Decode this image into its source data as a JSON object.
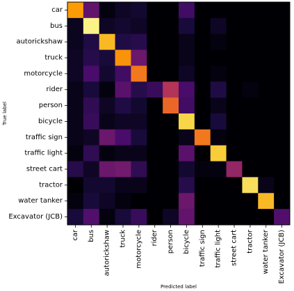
{
  "chart_data": {
    "type": "heatmap",
    "title": "",
    "xlabel": "Predicted label",
    "ylabel": "True label",
    "categories": [
      "car",
      "bus",
      "autorickshaw",
      "truck",
      "motorcycle",
      "rider",
      "person",
      "bicycle",
      "traffic sign",
      "traffic light",
      "street cart",
      "tractor",
      "water tanker",
      "Excavator (JCB)"
    ],
    "values_scale": [
      0,
      1
    ],
    "colormap": [
      "#000004",
      "#1b0c41",
      "#4a0c6b",
      "#781c6d",
      "#a52c60",
      "#cf4446",
      "#ed6925",
      "#fb9b06",
      "#f7d13d",
      "#fcffa4"
    ],
    "grid": false,
    "values": [
      [
        0.78,
        0.28,
        0.02,
        0.06,
        0.08,
        0.0,
        0.0,
        0.2,
        0.0,
        0.0,
        0.0,
        0.0,
        0.0,
        0.0
      ],
      [
        0.05,
        0.97,
        0.06,
        0.08,
        0.06,
        0.0,
        0.0,
        0.1,
        0.0,
        0.06,
        0.0,
        0.0,
        0.0,
        0.0
      ],
      [
        0.05,
        0.12,
        0.84,
        0.12,
        0.14,
        0.0,
        0.0,
        0.04,
        0.0,
        0.02,
        0.0,
        0.0,
        0.0,
        0.0
      ],
      [
        0.06,
        0.14,
        0.1,
        0.76,
        0.3,
        0.0,
        0.0,
        0.04,
        0.0,
        0.0,
        0.0,
        0.0,
        0.0,
        0.0
      ],
      [
        0.06,
        0.22,
        0.08,
        0.2,
        0.7,
        0.0,
        0.0,
        0.06,
        0.0,
        0.02,
        0.0,
        0.0,
        0.0,
        0.0
      ],
      [
        0.04,
        0.1,
        0.02,
        0.26,
        0.14,
        0.18,
        0.48,
        0.22,
        0.0,
        0.12,
        0.0,
        0.02,
        0.0,
        0.0
      ],
      [
        0.04,
        0.16,
        0.06,
        0.12,
        0.08,
        0.0,
        0.66,
        0.2,
        0.0,
        0.04,
        0.0,
        0.0,
        0.0,
        0.0
      ],
      [
        0.04,
        0.18,
        0.04,
        0.06,
        0.06,
        0.0,
        0.0,
        0.9,
        0.0,
        0.1,
        0.0,
        0.0,
        0.0,
        0.0
      ],
      [
        0.04,
        0.06,
        0.3,
        0.22,
        0.1,
        0.0,
        0.0,
        0.04,
        0.7,
        0.02,
        0.0,
        0.0,
        0.0,
        0.0
      ],
      [
        0.02,
        0.16,
        0.02,
        0.04,
        0.04,
        0.0,
        0.0,
        0.26,
        0.0,
        0.88,
        0.0,
        0.0,
        0.0,
        0.0
      ],
      [
        0.14,
        0.06,
        0.3,
        0.32,
        0.16,
        0.0,
        0.0,
        0.08,
        0.02,
        0.02,
        0.4,
        0.0,
        0.0,
        0.0
      ],
      [
        0.0,
        0.08,
        0.08,
        0.04,
        0.04,
        0.0,
        0.0,
        0.14,
        0.0,
        0.0,
        0.0,
        0.92,
        0.04,
        0.0
      ],
      [
        0.02,
        0.1,
        0.06,
        0.02,
        0.0,
        0.0,
        0.0,
        0.3,
        0.0,
        0.0,
        0.0,
        0.0,
        0.84,
        0.0
      ],
      [
        0.1,
        0.24,
        0.02,
        0.1,
        0.18,
        0.0,
        0.06,
        0.28,
        0.0,
        0.0,
        0.0,
        0.0,
        0.0,
        0.24
      ]
    ]
  }
}
